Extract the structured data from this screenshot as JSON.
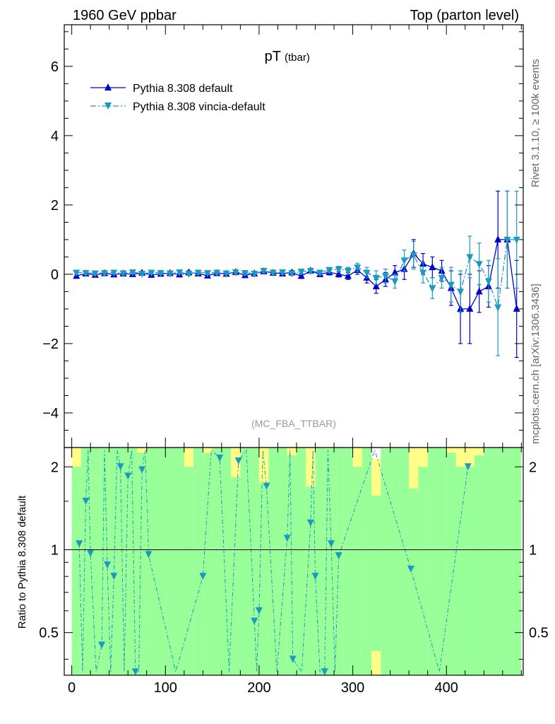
{
  "header": {
    "left": "1960 GeV ppbar",
    "right": "Top (parton level)"
  },
  "side_text": {
    "rivet": "Rivet 3.1.10, ≥ 100k events",
    "mcplots": "mcplots.cern.ch [arXiv:1306.3436]"
  },
  "chart_data": {
    "type": "line",
    "title": "pT",
    "title_sub": "(tbar)",
    "watermark": "(MC_FBA_TTBAR)",
    "xlim": [
      -8,
      482
    ],
    "x_ticks": [
      "0",
      "100",
      "200",
      "300",
      "400"
    ],
    "main": {
      "ylim": [
        -5,
        7.2
      ],
      "y_ticks": [
        "−4",
        "−2",
        "0",
        "2",
        "4",
        "6"
      ],
      "legend_position": "top-left",
      "series": [
        {
          "name": "Pythia 8.308 default",
          "color": "#0000cc",
          "style": "solid",
          "marker": "triangle-up",
          "x": [
            5,
            15,
            25,
            35,
            45,
            55,
            65,
            75,
            85,
            95,
            105,
            115,
            125,
            135,
            145,
            155,
            165,
            175,
            185,
            195,
            205,
            215,
            225,
            235,
            245,
            255,
            265,
            275,
            285,
            295,
            305,
            315,
            325,
            335,
            345,
            355,
            365,
            375,
            385,
            395,
            405,
            415,
            425,
            435,
            445,
            455,
            465,
            475
          ],
          "y": [
            -0.05,
            0.02,
            -0.02,
            0.03,
            -0.01,
            0.02,
            0.0,
            0.04,
            -0.02,
            0.01,
            0.03,
            -0.01,
            0.05,
            0.02,
            -0.04,
            0.03,
            0.01,
            0.06,
            -0.03,
            0.02,
            0.08,
            0.04,
            0.02,
            0.05,
            -0.05,
            0.1,
            0.0,
            0.06,
            0.0,
            -0.05,
            0.12,
            -0.1,
            -0.35,
            -0.15,
            0.05,
            0.15,
            0.6,
            0.3,
            0.2,
            0.1,
            -0.4,
            -1.0,
            -1.0,
            -0.5,
            -0.35,
            1.0,
            1.0,
            -1.0
          ],
          "err": [
            0.05,
            0.05,
            0.05,
            0.05,
            0.05,
            0.05,
            0.05,
            0.05,
            0.05,
            0.05,
            0.05,
            0.05,
            0.05,
            0.05,
            0.05,
            0.05,
            0.05,
            0.05,
            0.05,
            0.05,
            0.06,
            0.06,
            0.06,
            0.06,
            0.07,
            0.07,
            0.07,
            0.08,
            0.08,
            0.1,
            0.12,
            0.15,
            0.2,
            0.2,
            0.2,
            0.3,
            0.4,
            0.3,
            0.3,
            0.3,
            0.5,
            1.0,
            1.0,
            0.6,
            0.6,
            1.4,
            1.4,
            1.4
          ]
        },
        {
          "name": "Pythia 8.308 vincia-default",
          "color": "#1a9ac0",
          "style": "dashdot",
          "marker": "triangle-down",
          "x": [
            5,
            15,
            25,
            35,
            45,
            55,
            65,
            75,
            85,
            95,
            105,
            115,
            125,
            135,
            145,
            155,
            165,
            175,
            185,
            195,
            205,
            215,
            225,
            235,
            245,
            255,
            265,
            275,
            285,
            295,
            305,
            315,
            325,
            335,
            345,
            355,
            365,
            375,
            385,
            395,
            405,
            415,
            425,
            435,
            445,
            455,
            465,
            475
          ],
          "y": [
            0.05,
            0.04,
            0.03,
            0.04,
            0.05,
            0.03,
            0.06,
            0.02,
            0.05,
            0.04,
            0.03,
            0.06,
            0.02,
            0.05,
            0.04,
            0.05,
            0.03,
            0.06,
            0.04,
            0.02,
            0.1,
            0.05,
            0.06,
            0.03,
            0.08,
            0.1,
            0.05,
            0.12,
            0.15,
            0.1,
            0.2,
            0.05,
            -0.1,
            -0.05,
            -0.2,
            0.4,
            0.55,
            0.05,
            -0.4,
            -0.1,
            -0.3,
            -0.5,
            0.5,
            0.3,
            -0.2,
            -0.95,
            1.0,
            1.0
          ],
          "err": [
            0.05,
            0.05,
            0.05,
            0.05,
            0.05,
            0.05,
            0.05,
            0.05,
            0.05,
            0.05,
            0.05,
            0.05,
            0.05,
            0.05,
            0.05,
            0.05,
            0.05,
            0.05,
            0.05,
            0.05,
            0.06,
            0.06,
            0.06,
            0.06,
            0.07,
            0.07,
            0.07,
            0.08,
            0.08,
            0.1,
            0.12,
            0.15,
            0.2,
            0.2,
            0.2,
            0.3,
            0.4,
            0.3,
            0.3,
            0.3,
            0.5,
            0.6,
            0.6,
            0.6,
            0.6,
            1.4,
            1.4,
            1.4
          ]
        }
      ]
    },
    "ratio": {
      "ylabel": "Ratio to Pythia 8.308 default",
      "y_scale": "log",
      "ylim": [
        0.35,
        2.35
      ],
      "y_ticks": [
        "0.5",
        "1",
        "2"
      ],
      "reference_line": 1,
      "band_colors": {
        "inner": "#99ff99",
        "outer": "#ffff88"
      },
      "points": {
        "x": [
          8,
          15,
          20,
          32,
          38,
          45,
          52,
          60,
          68,
          75,
          82,
          140,
          158,
          178,
          195,
          200,
          208,
          230,
          236,
          255,
          260,
          270,
          277,
          285,
          362,
          423
        ],
        "y": [
          1.05,
          1.5,
          0.97,
          0.45,
          0.88,
          0.8,
          2.0,
          1.85,
          0.35,
          1.95,
          0.96,
          0.8,
          2.15,
          2.1,
          0.55,
          0.6,
          1.7,
          1.1,
          0.4,
          1.25,
          0.8,
          0.35,
          1.05,
          0.95,
          0.85,
          2.0
        ]
      }
    }
  }
}
